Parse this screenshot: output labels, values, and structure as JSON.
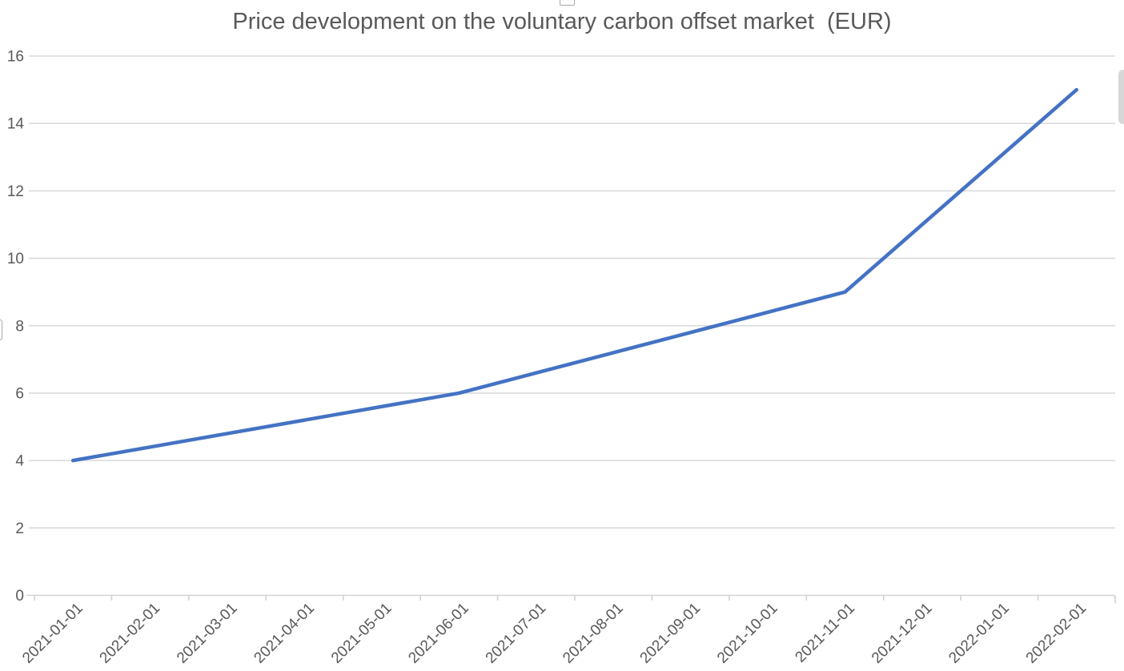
{
  "chart": {
    "title": "Price development on the voluntary carbon offset market  (EUR)"
  },
  "chart_data": {
    "type": "line",
    "title": "Price development on the voluntary carbon offset market  (EUR)",
    "categories": [
      "2021-01-01",
      "2021-02-01",
      "2021-03-01",
      "2021-04-01",
      "2021-05-01",
      "2021-06-01",
      "2021-07-01",
      "2021-08-01",
      "2021-09-01",
      "2021-10-01",
      "2021-11-01",
      "2021-12-01",
      "2022-01-01",
      "2022-02-01"
    ],
    "values": [
      4,
      4.4,
      4.8,
      5.2,
      5.6,
      6,
      6.6,
      7.2,
      7.8,
      8.4,
      9,
      11,
      13,
      15
    ],
    "xlabel": "",
    "ylabel": "",
    "ylim": [
      0,
      16
    ],
    "ytick_step": 2,
    "yticks": [
      0,
      2,
      4,
      6,
      8,
      10,
      12,
      14,
      16
    ],
    "grid": true,
    "legend": false,
    "x_label_rotation_deg": -45,
    "line_color": "#4472C4",
    "gridline_color": "#DADADA",
    "axis_color": "#D2D2D2",
    "label_color": "#595959",
    "title_color": "#595959"
  }
}
